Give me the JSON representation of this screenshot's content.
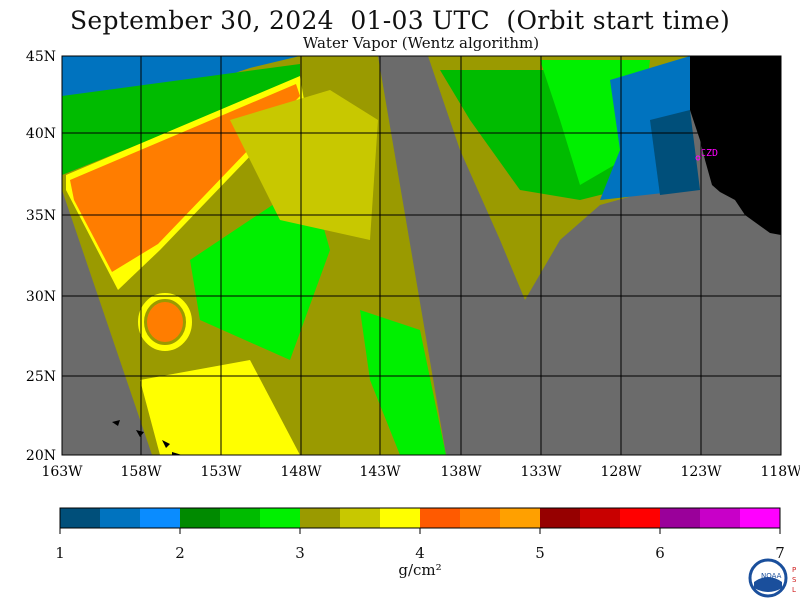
{
  "header": {
    "title": "September 30, 2024  01-03 UTC  (Orbit start time)",
    "subtitle": "Water Vapor (Wentz algorithm)"
  },
  "map": {
    "lat_labels": [
      "45N",
      "40N",
      "35N",
      "30N",
      "25N",
      "20N"
    ],
    "lon_labels": [
      "163W",
      "158W",
      "153W",
      "148W",
      "143W",
      "138W",
      "133W",
      "128W",
      "123W",
      "118W"
    ],
    "station_label": "CZD",
    "colors": {
      "no_data": "#6b6b6b",
      "land": "#000000",
      "grid": "#000000",
      "station": "#ff00ff"
    }
  },
  "colorbar": {
    "tick_labels": [
      "1",
      "2",
      "3",
      "4",
      "5",
      "6",
      "7"
    ],
    "units": "g/cm²",
    "colors": [
      "#004f7a",
      "#0073bf",
      "#0a8cff",
      "#008a00",
      "#00bb00",
      "#00f000",
      "#9a9a00",
      "#c8c800",
      "#ffff00",
      "#ff5a00",
      "#ff7d00",
      "#ffa000",
      "#960000",
      "#c80000",
      "#ff0000",
      "#9a009a",
      "#c800c8",
      "#ff00ff"
    ]
  },
  "logo": {
    "name": "noaa-logo",
    "side_text": "PSL"
  }
}
